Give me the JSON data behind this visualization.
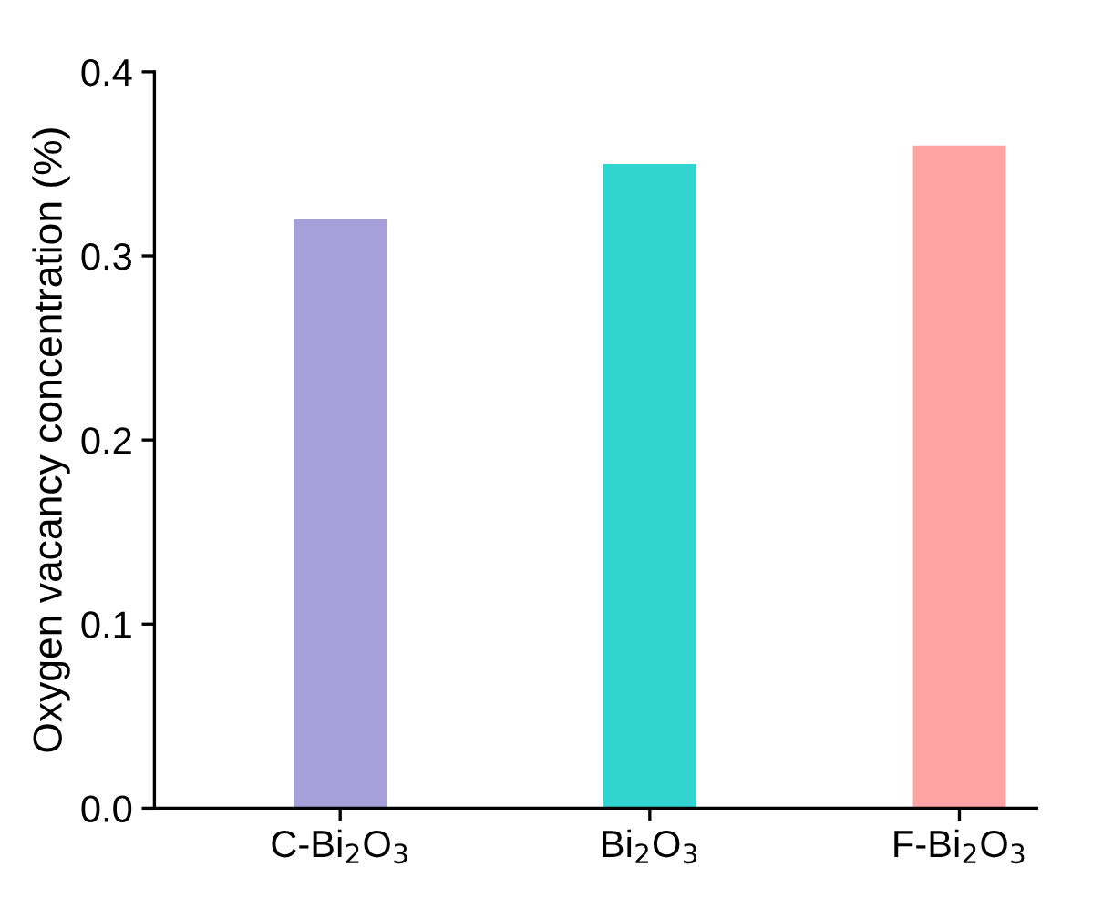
{
  "chart_data": {
    "type": "bar",
    "categories": [
      "C-Bi$_{2}$O$_{3}$",
      "Bi$_{2}$O$_{3}$",
      "F-Bi$_{2}$O$_{3}$"
    ],
    "values": [
      0.32,
      0.35,
      0.36
    ],
    "colors": [
      "#a69fd9",
      "#30d5cf",
      "#ffa3a3"
    ],
    "ylabel": "Oxygen vacancy concentration (%)",
    "ylim": [
      0,
      0.4
    ],
    "yticks": [
      {
        "value": 0,
        "label": "0.0"
      },
      0.1,
      0.2,
      0.3,
      0.4
    ],
    "grid": false,
    "legend": false
  }
}
